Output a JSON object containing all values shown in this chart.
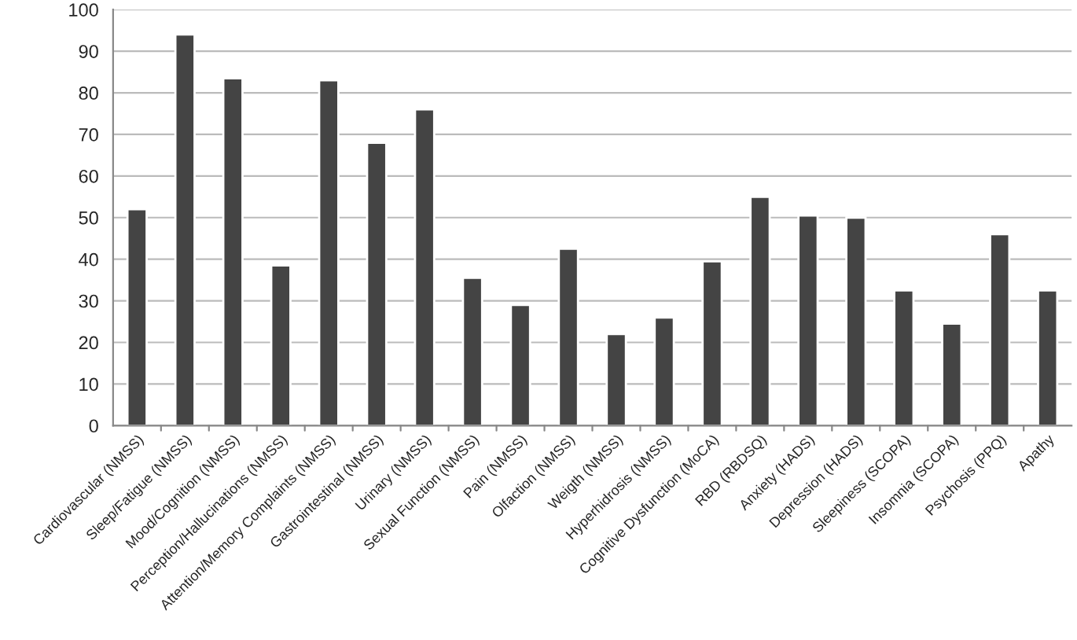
{
  "chart_data": {
    "type": "bar",
    "categories": [
      "Cardiovascular (NMSS)",
      "Sleep/Fatigue (NMSS)",
      "Mood/Cognition (NMSS)",
      "Perception/Hallucinations (NMSS)",
      "Attention/Memory Complaints (NMSS)",
      "Gastrointestinal (NMSS)",
      "Urinary (NMSS)",
      "Sexual Function (NMSS)",
      "Pain (NMSS)",
      "Olfaction (NMSS)",
      "Weigth (NMSS)",
      "Hyperhidrosis (NMSS)",
      "Cognitive Dysfunction (MoCA)",
      "RBD (RBDSQ)",
      "Anxiety (HADS)",
      "Depression (HADS)",
      "Sleepiness (SCOPA)",
      "Insomnia (SCOPA)",
      "Psychosis (PPQ)",
      "Apathy"
    ],
    "values": [
      52,
      94,
      83.5,
      38.5,
      83,
      68,
      76,
      35.5,
      29,
      42.5,
      22,
      26,
      39.5,
      55,
      50.5,
      50,
      32.5,
      24.5,
      46,
      32.5
    ],
    "color": "#444444",
    "ylim": [
      0,
      100
    ],
    "yticks": [
      0,
      10,
      20,
      30,
      40,
      50,
      60,
      70,
      80,
      90,
      100
    ],
    "grid": "y",
    "legend": false
  }
}
